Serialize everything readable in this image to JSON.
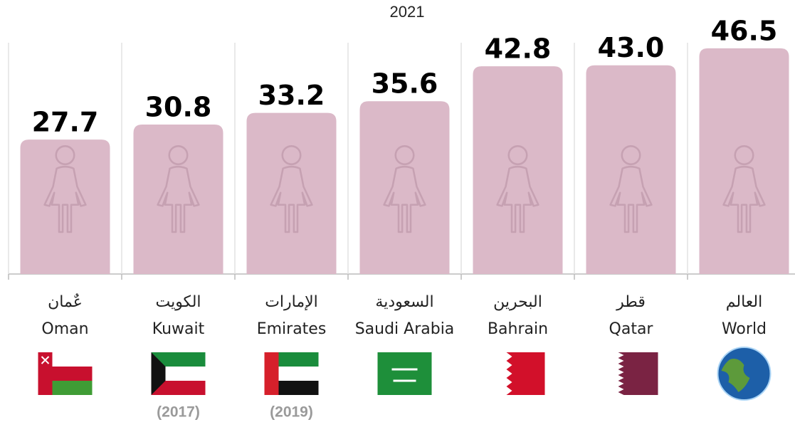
{
  "chart_data": {
    "type": "bar",
    "title": "2021",
    "categories": [
      "Oman",
      "Kuwait",
      "Emirates",
      "Saudi Arabia",
      "Bahrain",
      "Qatar",
      "World"
    ],
    "categories_ar": [
      "عٌمان",
      "الكويت",
      "الإمارات",
      "السعودية",
      "البحرين",
      "قطر",
      "العالم"
    ],
    "notes": [
      null,
      "(2017)",
      "(2019)",
      null,
      null,
      null,
      null
    ],
    "values": [
      27.7,
      30.8,
      33.2,
      35.6,
      42.8,
      43.0,
      46.5
    ],
    "value_labels": [
      "27.7",
      "30.8",
      "33.2",
      "35.6",
      "42.8",
      "43.0",
      "46.5"
    ],
    "color": "#dbb9c8",
    "ylim": [
      0,
      50
    ]
  }
}
